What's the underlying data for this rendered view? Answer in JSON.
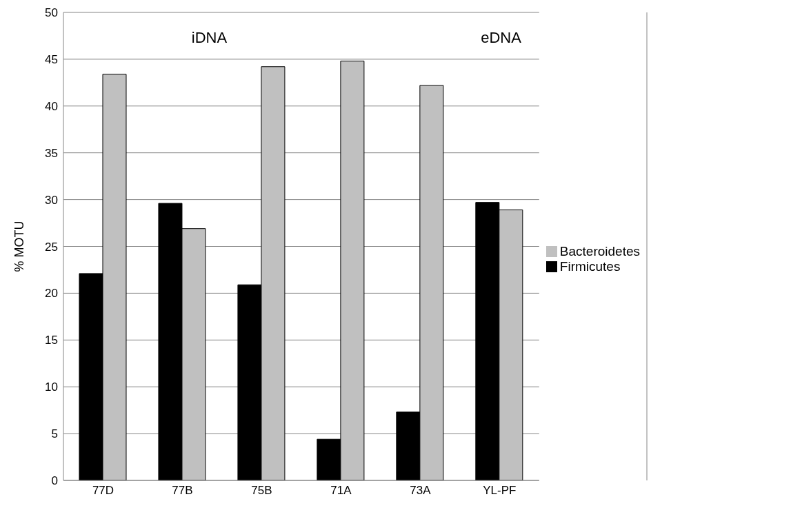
{
  "chart_data": {
    "type": "bar",
    "ylabel": "% MOTU",
    "categories": [
      "77D",
      "77B",
      "75B",
      "71A",
      "73A",
      "YL-PF"
    ],
    "series": [
      {
        "name": "Firmicutes",
        "color": "#000000",
        "values": [
          22.1,
          29.6,
          20.9,
          4.4,
          7.3,
          29.7
        ]
      },
      {
        "name": "Bacteroidetes",
        "color": "#c0c0c0",
        "values": [
          43.4,
          26.9,
          44.2,
          44.8,
          42.2,
          28.9
        ]
      }
    ],
    "ylim": [
      0,
      50
    ],
    "yticks": [
      0,
      5,
      10,
      15,
      20,
      25,
      30,
      35,
      40,
      45,
      50
    ],
    "grid": "y",
    "legend": "right",
    "annotations": [
      "iDNA",
      "eDNA"
    ]
  }
}
